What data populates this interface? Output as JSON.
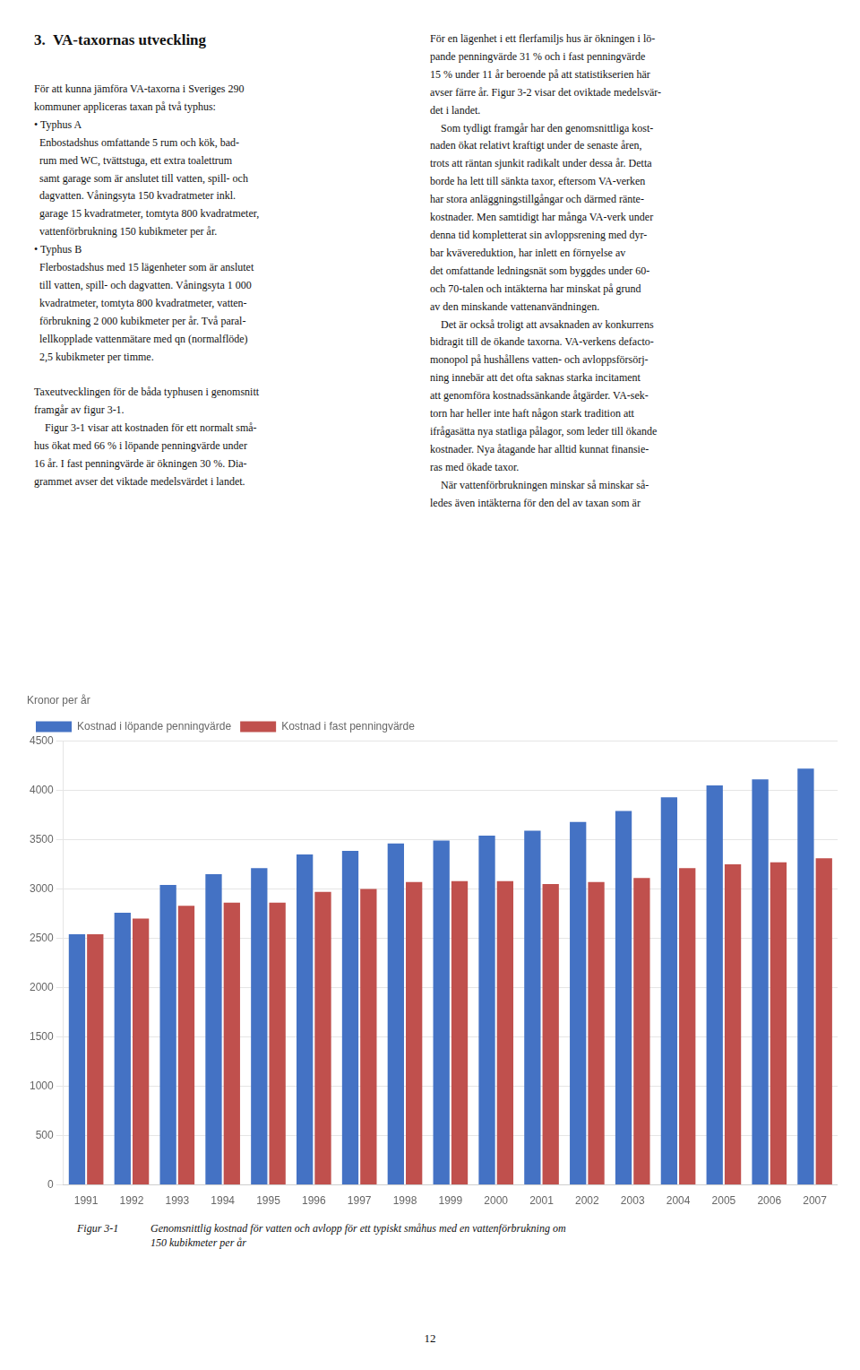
{
  "chart_data": {
    "type": "bar",
    "y_label": "Kronor per år",
    "categories": [
      "1991",
      "1992",
      "1993",
      "1994",
      "1995",
      "1996",
      "1997",
      "1998",
      "1999",
      "2000",
      "2001",
      "2002",
      "2003",
      "2004",
      "2005",
      "2006",
      "2007"
    ],
    "series": [
      {
        "name": "Kostnad i löpande penningvärde",
        "color": "#4472c4",
        "values": [
          2540,
          2760,
          3040,
          3150,
          3210,
          3350,
          3385,
          3460,
          3490,
          3540,
          3590,
          3680,
          3790,
          3930,
          4050,
          4110,
          4220
        ]
      },
      {
        "name": "Kostnad i fast penningvärde",
        "color": "#c0504d",
        "values": [
          2540,
          2700,
          2830,
          2860,
          2860,
          2970,
          3000,
          3070,
          3080,
          3080,
          3050,
          3070,
          3110,
          3210,
          3250,
          3270,
          3310
        ]
      }
    ],
    "ylim": [
      0,
      4500
    ],
    "yticks": [
      0,
      500,
      1000,
      1500,
      2000,
      2500,
      3000,
      3500,
      4000,
      4500
    ],
    "grid": true,
    "legend": "upper left",
    "annotations": {
      "heading": "3.  VA-taxornas utveckling",
      "left_column": [
        [
          "För att kunna jämföra VA-taxorna i Sveriges 290",
          "kommuner appliceras taxan på två typhus:",
          "• Typhus A",
          "  Enbostadshus omfattande 5 rum och kök, bad-",
          "  rum med WC, tvättstuga, ett extra toalettrum",
          "  samt garage som är anslutet till vatten, spill- och",
          "  dagvatten. Våningsyta 150 kvadratmeter inkl.",
          "  garage 15 kvadratmeter, tomtyta 800 kvadratmeter,",
          "  vattenförbrukning 150 kubikmeter per år.",
          "• Typhus B",
          "  Flerbostadshus med 15 lägenheter som är anslutet",
          "  till vatten, spill- och dagvatten. Våningsyta 1 000",
          "  kvadratmeter, tomtyta 800 kvadratmeter, vatten-",
          "  förbrukning 2 000 kubikmeter per år. Två paral-",
          "  lellkopplade vattenmätare med qn (normalflöde)",
          "  2,5 kubikmeter per timme."
        ],
        [
          "Taxeutvecklingen för de båda typhusen i genomsnitt",
          "framgår av figur 3-1.",
          "    Figur 3-1 visar att kostnaden för ett normalt små-",
          "hus ökat med 66 % i löpande penningvärde under",
          "16 år. I fast penningvärde är ökningen 30 %. Dia-",
          "grammet avser det viktade medelsvärdet i landet."
        ]
      ],
      "right_column": [
        [
          "För en lägenhet i ett flerfamiljs hus är ökningen i lö-",
          "pande penningvärde 31 % och i fast penningvärde",
          "15 % under 11 år beroende på att statistikserien här",
          "avser färre år. Figur 3-2 visar det oviktade medelsvär-",
          "det i landet.",
          "    Som tydligt framgår har den genomsnittliga kost-",
          "naden ökat relativt kraftigt under de senaste åren,",
          "trots att räntan sjunkit radikalt under dessa år. Detta",
          "borde ha lett till sänkta taxor, eftersom VA-verken",
          "har stora anläggningstillgångar och därmed ränte-",
          "kostnader. Men samtidigt har många VA-verk under",
          "denna tid kompletterat sin avloppsrening med dyr-",
          "bar kvävereduktion, har inlett en förnyelse av",
          "det omfattande ledningsnät som byggdes under 60-",
          "och 70-talen och intäkterna har minskat på grund",
          "av den minskande vattenanvändningen.",
          "    Det är också troligt att avsaknaden av konkurrens",
          "bidragit till de ökande taxorna. VA-verkens defacto-",
          "monopol på hushållens vatten- och avloppsförsörj-",
          "ning innebär att det ofta saknas starka incitament",
          "att genomföra kostnadssänkande åtgärder. VA-sek-",
          "torn har heller inte haft någon stark tradition att",
          "ifrågasätta nya statliga pålagor, som leder till ökande",
          "kostnader. Nya åtagande har alltid kunnat finansie-",
          "ras med ökade taxor.",
          "    När vattenförbrukningen minskar så minskar så-",
          "ledes även intäkterna för den del av taxan som är"
        ]
      ],
      "caption_label": "Figur 3-1",
      "caption": [
        "Genomsnittlig kostnad för vatten och avlopp för ett typiskt småhus med en vattenförbrukning om",
        "150 kubikmeter per år"
      ],
      "page_number": "12"
    }
  }
}
